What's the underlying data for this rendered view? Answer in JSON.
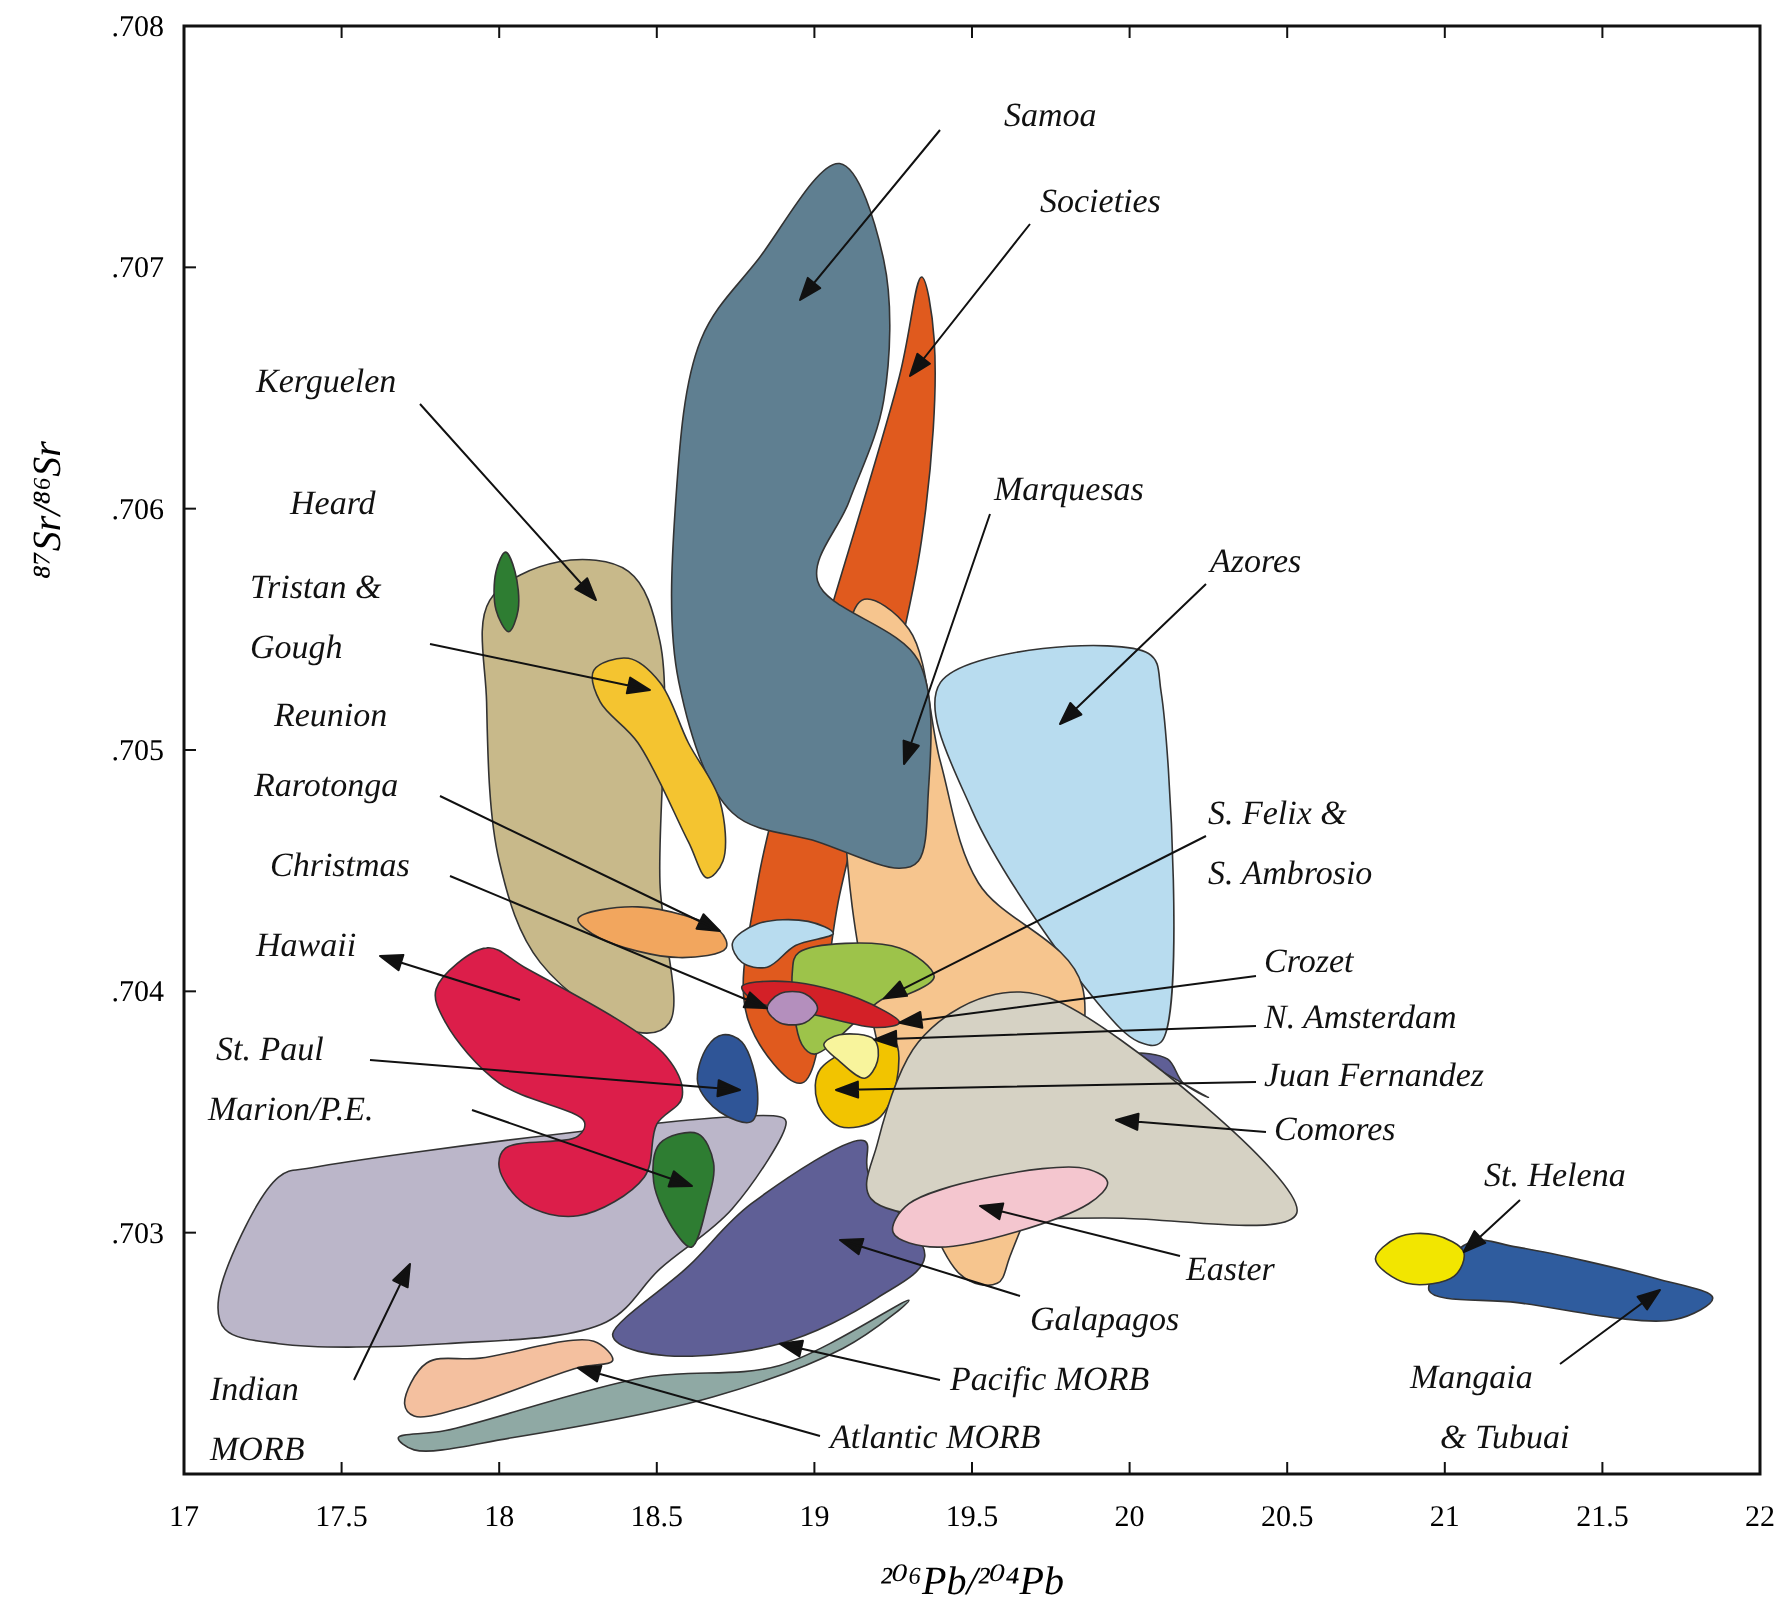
{
  "chart_data": {
    "type": "area",
    "xlabel": "²⁰⁶Pb/²⁰⁴Pb",
    "ylabel": "⁸⁷Sr/⁸⁶Sr",
    "xlim": [
      17,
      22
    ],
    "xticks": [
      17,
      17.5,
      18,
      18.5,
      19,
      19.5,
      20,
      20.5,
      21,
      21.5,
      22
    ],
    "ylim": [
      0.702,
      0.708
    ],
    "yticks": [
      {
        "value": 0.703,
        "label": ".703"
      },
      {
        "value": 0.704,
        "label": ".704"
      },
      {
        "value": 0.705,
        "label": ".705"
      },
      {
        "value": 0.706,
        "label": ".706"
      },
      {
        "value": 0.707,
        "label": ".707"
      },
      {
        "value": 0.708,
        "label": ".708"
      }
    ],
    "series": [
      {
        "color": "#8fa9a4",
        "x": [
          17.68,
          17.83,
          18.46,
          18.89,
          19.3,
          19.25,
          19.09,
          18.68,
          18.04,
          17.73
        ],
        "values": [
          0.70215,
          0.70218,
          0.7024,
          0.70245,
          0.70272,
          0.70266,
          0.70252,
          0.70232,
          0.70215,
          0.7021
        ]
      },
      {
        "color": "#f4c09f",
        "x": [
          17.7,
          17.77,
          17.94,
          18.3,
          18.36,
          18.25,
          17.87,
          17.73
        ],
        "values": [
          0.70229,
          0.70246,
          0.70248,
          0.70255,
          0.70247,
          0.70244,
          0.70227,
          0.70224
        ]
      },
      {
        "color": "#5f5f96",
        "x": [
          18.36,
          18.6,
          18.8,
          19.16,
          19.17,
          19.35,
          19.2,
          18.89,
          18.53,
          18.38
        ],
        "values": [
          0.70258,
          0.70286,
          0.70312,
          0.70338,
          0.70325,
          0.7029,
          0.70273,
          0.70254,
          0.70249,
          0.70254
        ]
      },
      {
        "color": "#bbb6c9",
        "x": [
          17.11,
          17.3,
          17.41,
          18.89,
          18.91,
          18.74,
          18.51,
          18.34,
          17.83,
          17.3,
          17.13
        ],
        "values": [
          0.70273,
          0.70323,
          0.70327,
          0.70348,
          0.70346,
          0.7031,
          0.70285,
          0.70263,
          0.70254,
          0.70254,
          0.7026
        ]
      },
      {
        "color": "#c8b98a",
        "x": [
          17.97,
          18.19,
          18.41,
          18.51,
          18.51,
          18.54,
          18.44,
          18.13,
          18.0,
          17.96
        ],
        "values": [
          0.70562,
          0.70578,
          0.70574,
          0.70545,
          0.70445,
          0.70387,
          0.70383,
          0.70412,
          0.70454,
          0.7052
        ]
      },
      {
        "color": "#2e7d32",
        "x": [
          18.02,
          18.05,
          18.06,
          18.03,
          17.99,
          17.99
        ],
        "values": [
          0.70582,
          0.70574,
          0.70558,
          0.70549,
          0.70558,
          0.70574
        ]
      },
      {
        "color": "#b8dcef",
        "x": [
          19.4,
          20.06,
          20.1,
          20.1,
          20.03,
          19.9,
          19.5
        ],
        "values": [
          0.70528,
          0.7054,
          0.70524,
          0.70379,
          0.70379,
          0.70395,
          0.70475
        ]
      },
      {
        "color": "#e05a1e",
        "x": [
          19.34,
          19.38,
          19.34,
          19.08,
          18.96,
          18.79,
          18.82,
          19.27
        ],
        "values": [
          0.70696,
          0.7067,
          0.70587,
          0.7044,
          0.70362,
          0.70388,
          0.70445,
          0.70655
        ]
      },
      {
        "color": "#f6c58e",
        "x": [
          19.15,
          19.3,
          19.4,
          19.52,
          19.85,
          19.62,
          19.58,
          19.46,
          19.12
        ],
        "values": [
          0.70562,
          0.7055,
          0.70495,
          0.70445,
          0.70402,
          0.7029,
          0.70279,
          0.70283,
          0.70435
        ]
      },
      {
        "color": "#5f7f91",
        "x": [
          19.08,
          19.22,
          19.22,
          19.11,
          19.01,
          19.33,
          19.36,
          19.33,
          19.27,
          19.01,
          18.74,
          18.57,
          18.56,
          18.64,
          18.82
        ],
        "values": [
          0.70743,
          0.70703,
          0.70645,
          0.70603,
          0.7057,
          0.70537,
          0.70479,
          0.70454,
          0.70451,
          0.70462,
          0.70474,
          0.70528,
          0.70603,
          0.7067,
          0.70703
        ]
      },
      {
        "color": "#f4c430",
        "x": [
          18.3,
          18.41,
          18.51,
          18.6,
          18.7,
          18.71,
          18.66,
          18.6,
          18.44,
          18.32
        ],
        "values": [
          0.70533,
          0.70538,
          0.70528,
          0.70503,
          0.70479,
          0.70454,
          0.70447,
          0.70462,
          0.70503,
          0.7052
        ]
      },
      {
        "color": "#f2a65e",
        "x": [
          18.25,
          18.44,
          18.7,
          18.72,
          18.57,
          18.32
        ],
        "values": [
          0.7043,
          0.70435,
          0.70425,
          0.70418,
          0.70414,
          0.70422
        ]
      },
      {
        "color": "#b8dcef",
        "x": [
          18.74,
          18.82,
          18.98,
          19.06,
          18.94,
          18.85,
          18.77
        ],
        "values": [
          0.7042,
          0.70428,
          0.70429,
          0.70424,
          0.70419,
          0.7041,
          0.70412
        ]
      },
      {
        "color": "#dc1e4a",
        "x": [
          17.8,
          17.96,
          18.08,
          18.53,
          18.58,
          18.5,
          18.46,
          18.25,
          18.08,
          18.0,
          18.02,
          18.25,
          18.27,
          18.0,
          17.83
        ],
        "values": [
          0.70401,
          0.70418,
          0.7041,
          0.70373,
          0.70356,
          0.70345,
          0.70323,
          0.70307,
          0.70312,
          0.70327,
          0.70335,
          0.7034,
          0.70346,
          0.70362,
          0.70387
        ]
      },
      {
        "color": "#2e7d32",
        "x": [
          18.51,
          18.63,
          18.68,
          18.66,
          18.61,
          18.56,
          18.49
        ],
        "values": [
          0.70337,
          0.70341,
          0.70329,
          0.70312,
          0.70294,
          0.703,
          0.70321
        ]
      },
      {
        "color": "#2f5597",
        "x": [
          18.71,
          18.77,
          18.82,
          18.8,
          18.7,
          18.63,
          18.66
        ],
        "values": [
          0.70382,
          0.70379,
          0.70358,
          0.70346,
          0.7035,
          0.70362,
          0.70377
        ]
      },
      {
        "color": "#f2c400",
        "x": [
          19.25,
          19.26,
          19.2,
          19.08,
          19.01,
          19.02
        ],
        "values": [
          0.7038,
          0.70362,
          0.70347,
          0.70344,
          0.70354,
          0.70368
        ]
      },
      {
        "color": "#9dc34a",
        "x": [
          18.95,
          19.27,
          19.38,
          19.3,
          19.22,
          19.0,
          18.96,
          18.93
        ],
        "values": [
          0.70416,
          0.70418,
          0.70406,
          0.70399,
          0.70397,
          0.70374,
          0.70378,
          0.70408
        ]
      },
      {
        "color": "#f8f49c",
        "x": [
          19.08,
          19.19,
          19.2,
          19.16,
          19.08,
          19.03
        ],
        "values": [
          0.70382,
          0.7038,
          0.70371,
          0.70364,
          0.70371,
          0.70378
        ]
      },
      {
        "color": "#d32027",
        "x": [
          18.77,
          18.92,
          19.14,
          19.27,
          19.2,
          19.01,
          18.81
        ],
        "values": [
          0.70402,
          0.70404,
          0.70397,
          0.70387,
          0.70385,
          0.7039,
          0.70396
        ]
      },
      {
        "color": "#b48fbd",
        "x": [
          18.85,
          18.89,
          18.97,
          19.01,
          18.97,
          18.89
        ],
        "values": [
          0.70393,
          0.70399,
          0.70399,
          0.70393,
          0.70387,
          0.70387
        ]
      },
      {
        "color": "#5f5f96",
        "x": [
          20.02,
          20.12,
          20.17,
          20.25
        ],
        "values": [
          0.70374,
          0.70372,
          0.70362,
          0.70356
        ]
      },
      {
        "color": "#d6d2c4",
        "x": [
          19.55,
          19.77,
          20.53,
          19.98,
          19.18,
          19.2,
          19.33
        ],
        "values": [
          0.70398,
          0.70396,
          0.70308,
          0.70306,
          0.70314,
          0.70337,
          0.70379
        ]
      },
      {
        "color": "#f4c6cf",
        "x": [
          19.3,
          19.84,
          19.93,
          19.87,
          19.39,
          19.25
        ],
        "values": [
          0.70312,
          0.70327,
          0.70321,
          0.70312,
          0.70294,
          0.703
        ]
      },
      {
        "color": "#2f5c9e",
        "x": [
          21.08,
          21.23,
          21.67,
          21.85,
          21.73,
          21.23,
          20.95
        ],
        "values": [
          0.70296,
          0.70294,
          0.70281,
          0.70273,
          0.70264,
          0.70271,
          0.70276
        ]
      },
      {
        "color": "#f2e600",
        "x": [
          20.78,
          20.85,
          20.97,
          21.06,
          21.03,
          20.88
        ],
        "values": [
          0.70289,
          0.70298,
          0.70299,
          0.70292,
          0.70282,
          0.70279
        ]
      }
    ],
    "annotations": [
      "Samoa",
      "Societies",
      "Kerguelen",
      "Marquesas",
      "Azores",
      "Heard",
      "Tristan & Gough",
      "Reunion",
      {
        "text": "Rarotonga",
        "x": 18.7,
        "y": 0.70425
      },
      {
        "text": "Christmas",
        "x": 18.85,
        "y": 0.70393
      },
      "Hawaii",
      "St. Paul",
      "Marion/P.E.",
      {
        "text": "S. Felix & S. Ambrosio",
        "x": 19.22,
        "y": 0.70397
      },
      {
        "text": "Crozet",
        "x": 19.27,
        "y": 0.70387
      },
      {
        "text": "N. Amsterdam",
        "x": 19.19,
        "y": 0.7038
      },
      "Juan Fernandez",
      "Comores",
      {
        "text": "St. Helena",
        "x": 21.06,
        "y": 0.70292
      },
      "Easter",
      "Galapagos",
      "Indian MORB",
      {
        "text": "Pacific MORB",
        "x": 18.89,
        "y": 0.70254
      },
      {
        "text": "Atlantic MORB",
        "x": 18.25,
        "y": 0.70244
      },
      "Mangaia & Tubuai"
    ]
  }
}
